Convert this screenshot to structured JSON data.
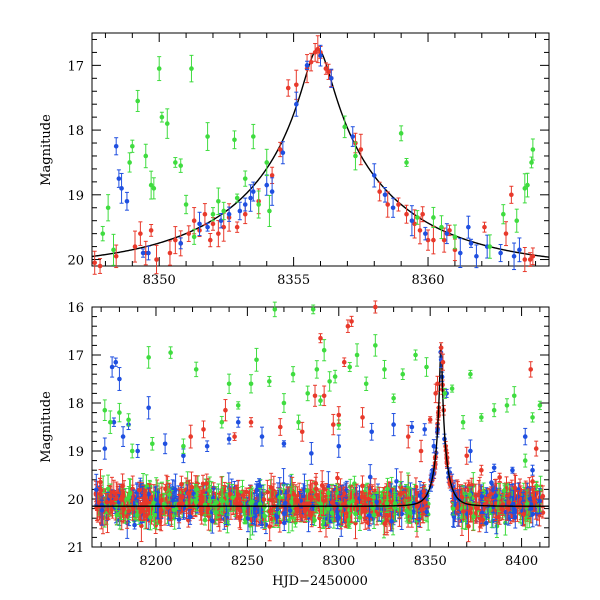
{
  "figure": {
    "width": 600,
    "height": 600
  },
  "chart_data": [
    {
      "id": "top",
      "type": "scatter",
      "title": "",
      "xlabel": "",
      "ylabel": "Magnitude",
      "xlim": [
        8347.5,
        8364.5
      ],
      "ylim": [
        20.1,
        16.5
      ],
      "y_inverted": true,
      "xticks_labeled": [
        8350,
        8355,
        8360
      ],
      "yticks_labeled": [
        17,
        18,
        19,
        20
      ],
      "grid": false,
      "legend": "none",
      "model_curve": {
        "name": "",
        "color": "#000000",
        "t0": 8355.9,
        "peak_mag": 16.75,
        "base_mag": 20.15,
        "u0": 0.08,
        "tE": 6.0
      },
      "series": [
        {
          "name": "",
          "color": "#e8392b",
          "points": [
            [
              8347.6,
              20.05
            ],
            [
              8347.8,
              20.1
            ],
            [
              8348.4,
              19.95
            ],
            [
              8349.1,
              19.8
            ],
            [
              8349.3,
              19.6
            ],
            [
              8349.5,
              19.9
            ],
            [
              8349.7,
              19.55
            ],
            [
              8349.9,
              20.0
            ],
            [
              8350.4,
              19.9
            ],
            [
              8350.6,
              19.7
            ],
            [
              8350.8,
              19.75
            ],
            [
              8351.1,
              19.6
            ],
            [
              8351.3,
              19.4
            ],
            [
              8351.5,
              19.55
            ],
            [
              8351.7,
              19.3
            ],
            [
              8351.9,
              19.7
            ],
            [
              8352.0,
              19.45
            ],
            [
              8352.2,
              19.6
            ],
            [
              8352.4,
              19.5
            ],
            [
              8352.6,
              19.35
            ],
            [
              8352.9,
              19.5
            ],
            [
              8353.2,
              19.3
            ],
            [
              8353.7,
              19.1
            ],
            [
              8354.2,
              18.7
            ],
            [
              8354.5,
              18.3
            ],
            [
              8354.8,
              17.35
            ],
            [
              8355.1,
              17.3
            ],
            [
              8355.5,
              17.05
            ],
            [
              8355.65,
              16.95
            ],
            [
              8355.8,
              16.8
            ],
            [
              8355.9,
              16.75
            ],
            [
              8356.0,
              16.8
            ],
            [
              8356.2,
              17.05
            ],
            [
              8356.3,
              17.1
            ],
            [
              8356.4,
              17.2
            ],
            [
              8357.3,
              18.2
            ],
            [
              8357.5,
              18.3
            ],
            [
              8358.2,
              18.95
            ],
            [
              8358.5,
              19.15
            ],
            [
              8358.9,
              19.15
            ],
            [
              8359.2,
              19.3
            ],
            [
              8359.5,
              19.45
            ],
            [
              8359.7,
              19.55
            ],
            [
              8359.8,
              19.3
            ],
            [
              8360.0,
              19.7
            ],
            [
              8360.2,
              19.7
            ],
            [
              8360.6,
              19.7
            ],
            [
              8360.8,
              19.55
            ],
            [
              8361.0,
              19.85
            ],
            [
              8362.1,
              19.5
            ],
            [
              8362.9,
              19.6
            ],
            [
              8363.1,
              19.0
            ],
            [
              8363.6,
              20.0
            ],
            [
              8363.8,
              20.0
            ],
            [
              8363.9,
              19.95
            ]
          ]
        },
        {
          "name": "",
          "color": "#1f4fe0",
          "points": [
            [
              8348.4,
              18.25
            ],
            [
              8348.5,
              18.75
            ],
            [
              8348.6,
              18.9
            ],
            [
              8348.8,
              19.1
            ],
            [
              8349.4,
              19.9
            ],
            [
              8349.6,
              19.9
            ],
            [
              8350.8,
              19.75
            ],
            [
              8351.5,
              19.45
            ],
            [
              8351.8,
              19.5
            ],
            [
              8352.3,
              19.4
            ],
            [
              8352.6,
              19.3
            ],
            [
              8353.0,
              19.25
            ],
            [
              8353.2,
              19.15
            ],
            [
              8353.4,
              19.05
            ],
            [
              8353.5,
              18.95
            ],
            [
              8354.0,
              18.85
            ],
            [
              8354.2,
              18.95
            ],
            [
              8354.6,
              18.35
            ],
            [
              8355.1,
              17.6
            ],
            [
              8355.5,
              17.0
            ],
            [
              8356.0,
              16.85
            ],
            [
              8356.4,
              17.2
            ],
            [
              8357.2,
              18.1
            ],
            [
              8358.0,
              18.7
            ],
            [
              8358.4,
              19.0
            ],
            [
              8358.7,
              19.2
            ],
            [
              8359.4,
              19.4
            ],
            [
              8359.9,
              19.6
            ],
            [
              8360.7,
              19.6
            ],
            [
              8361.2,
              19.9
            ],
            [
              8361.5,
              19.5
            ],
            [
              8361.6,
              19.75
            ],
            [
              8361.8,
              19.95
            ],
            [
              8362.2,
              19.8
            ],
            [
              8362.7,
              19.9
            ],
            [
              8363.2,
              19.95
            ],
            [
              8363.4,
              19.85
            ]
          ]
        },
        {
          "name": "",
          "color": "#3fdc3f",
          "points": [
            [
              8347.9,
              19.6
            ],
            [
              8348.1,
              19.2
            ],
            [
              8348.3,
              19.85
            ],
            [
              8348.9,
              18.5
            ],
            [
              8349.0,
              18.25
            ],
            [
              8349.2,
              17.55
            ],
            [
              8349.5,
              18.4
            ],
            [
              8349.7,
              18.85
            ],
            [
              8349.8,
              18.9
            ],
            [
              8350.0,
              17.05
            ],
            [
              8350.1,
              17.8
            ],
            [
              8350.3,
              17.9
            ],
            [
              8350.6,
              18.5
            ],
            [
              8350.8,
              18.55
            ],
            [
              8351.0,
              19.15
            ],
            [
              8351.2,
              17.05
            ],
            [
              8351.3,
              19.65
            ],
            [
              8351.8,
              18.1
            ],
            [
              8352.0,
              19.3
            ],
            [
              8352.2,
              19.1
            ],
            [
              8352.4,
              19.25
            ],
            [
              8352.8,
              18.15
            ],
            [
              8352.9,
              19.05
            ],
            [
              8353.2,
              18.75
            ],
            [
              8353.5,
              18.1
            ],
            [
              8353.7,
              19.15
            ],
            [
              8354.0,
              18.5
            ],
            [
              8354.1,
              19.25
            ],
            [
              8356.9,
              17.95
            ],
            [
              8357.3,
              18.4
            ],
            [
              8359.0,
              18.05
            ],
            [
              8359.2,
              18.5
            ],
            [
              8359.6,
              19.35
            ],
            [
              8360.2,
              19.35
            ],
            [
              8360.5,
              19.5
            ],
            [
              8361.0,
              19.65
            ],
            [
              8362.3,
              19.8
            ],
            [
              8362.8,
              19.3
            ],
            [
              8363.3,
              19.4
            ],
            [
              8363.6,
              18.9
            ],
            [
              8363.7,
              18.85
            ],
            [
              8363.85,
              18.5
            ],
            [
              8363.9,
              18.3
            ]
          ]
        }
      ]
    },
    {
      "id": "bottom",
      "type": "scatter",
      "title": "",
      "xlabel": "HJD−2450000",
      "ylabel": "Magnitude",
      "xlim": [
        8165,
        8415
      ],
      "ylim": [
        21,
        16
      ],
      "y_inverted": true,
      "xticks_labeled": [
        8200,
        8250,
        8300,
        8350,
        8400
      ],
      "yticks_labeled": [
        16,
        17,
        18,
        19,
        20,
        21
      ],
      "grid": false,
      "legend": "none",
      "model_curve": {
        "name": "",
        "color": "#000000",
        "t0": 8355.9,
        "peak_mag": 16.75,
        "base_mag": 20.15,
        "u0": 0.08,
        "tE": 6.0
      },
      "baseline": {
        "mean_mag": 20.1,
        "spread": 0.45,
        "x_range": [
          8167,
          8412
        ]
      },
      "series": [
        {
          "name": "",
          "color": "#1f4fe0",
          "points": [
            [
              8176,
              17.25
            ],
            [
              8178,
              17.15
            ],
            [
              8180,
              17.5
            ],
            [
              8177,
              18.4
            ],
            [
              8182,
              18.7
            ],
            [
              8185,
              18.45
            ],
            [
              8172,
              18.95
            ],
            [
              8190,
              19.0
            ],
            [
              8196,
              18.1
            ],
            [
              8205,
              18.85
            ],
            [
              8215,
              19.1
            ],
            [
              8228,
              18.9
            ],
            [
              8240,
              18.75
            ],
            [
              8245,
              18.4
            ],
            [
              8258,
              18.7
            ],
            [
              8270,
              18.85
            ],
            [
              8285,
              19.05
            ],
            [
              8300,
              18.9
            ],
            [
              8318,
              18.6
            ],
            [
              8330,
              18.45
            ],
            [
              8340,
              18.5
            ],
            [
              8347,
              18.55
            ],
            [
              8352,
              18.9
            ],
            [
              8356,
              17.1
            ],
            [
              8359,
              17.8
            ],
            [
              8372,
              19.0
            ],
            [
              8385,
              19.35
            ],
            [
              8395,
              19.4
            ],
            [
              8402,
              18.7
            ],
            [
              8406,
              19.4
            ]
          ]
        },
        {
          "name": "",
          "color": "#3fdc3f",
          "points": [
            [
              8172,
              18.15
            ],
            [
              8175,
              18.4
            ],
            [
              8180,
              18.2
            ],
            [
              8185,
              18.35
            ],
            [
              8187,
              19.0
            ],
            [
              8196,
              17.05
            ],
            [
              8198,
              18.85
            ],
            [
              8208,
              16.95
            ],
            [
              8215,
              18.9
            ],
            [
              8222,
              17.3
            ],
            [
              8236,
              18.4
            ],
            [
              8240,
              17.6
            ],
            [
              8245,
              18.05
            ],
            [
              8252,
              17.6
            ],
            [
              8255,
              17.1
            ],
            [
              8262,
              17.55
            ],
            [
              8265,
              16.05
            ],
            [
              8270,
              18.0
            ],
            [
              8275,
              17.4
            ],
            [
              8278,
              18.4
            ],
            [
              8283,
              17.8
            ],
            [
              8286,
              16.05
            ],
            [
              8288,
              17.3
            ],
            [
              8290,
              17.95
            ],
            [
              8292,
              16.9
            ],
            [
              8295,
              17.55
            ],
            [
              8298,
              17.45
            ],
            [
              8300,
              18.45
            ],
            [
              8306,
              17.25
            ],
            [
              8310,
              17.0
            ],
            [
              8315,
              17.6
            ],
            [
              8320,
              16.8
            ],
            [
              8325,
              17.3
            ],
            [
              8330,
              17.9
            ],
            [
              8335,
              17.4
            ],
            [
              8342,
              17.0
            ],
            [
              8348,
              17.25
            ],
            [
              8358,
              17.8
            ],
            [
              8362,
              17.7
            ],
            [
              8368,
              18.4
            ],
            [
              8372,
              17.4
            ],
            [
              8378,
              18.3
            ],
            [
              8385,
              18.15
            ],
            [
              8392,
              18.05
            ],
            [
              8396,
              17.85
            ],
            [
              8402,
              19.2
            ],
            [
              8406,
              18.3
            ],
            [
              8410,
              18.05
            ]
          ]
        },
        {
          "name": "",
          "color": "#e8392b",
          "points": [
            [
              8219,
              18.7
            ],
            [
              8226,
              18.55
            ],
            [
              8238,
              18.15
            ],
            [
              8243,
              18.7
            ],
            [
              8252,
              18.4
            ],
            [
              8268,
              18.5
            ],
            [
              8280,
              18.6
            ],
            [
              8287,
              17.85
            ],
            [
              8290,
              16.65
            ],
            [
              8292,
              17.85
            ],
            [
              8297,
              18.45
            ],
            [
              8300,
              18.25
            ],
            [
              8303,
              17.15
            ],
            [
              8305,
              16.4
            ],
            [
              8307,
              16.3
            ],
            [
              8313,
              18.3
            ],
            [
              8320,
              16.0
            ],
            [
              8338,
              18.7
            ],
            [
              8345,
              19.0
            ],
            [
              8350,
              18.35
            ],
            [
              8353,
              17.8
            ],
            [
              8354,
              17.6
            ],
            [
              8356,
              16.85
            ],
            [
              8357,
              17.15
            ],
            [
              8370,
              19.1
            ],
            [
              8378,
              19.4
            ],
            [
              8388,
              19.55
            ],
            [
              8405,
              17.3
            ],
            [
              8408,
              18.95
            ]
          ]
        }
      ]
    }
  ]
}
